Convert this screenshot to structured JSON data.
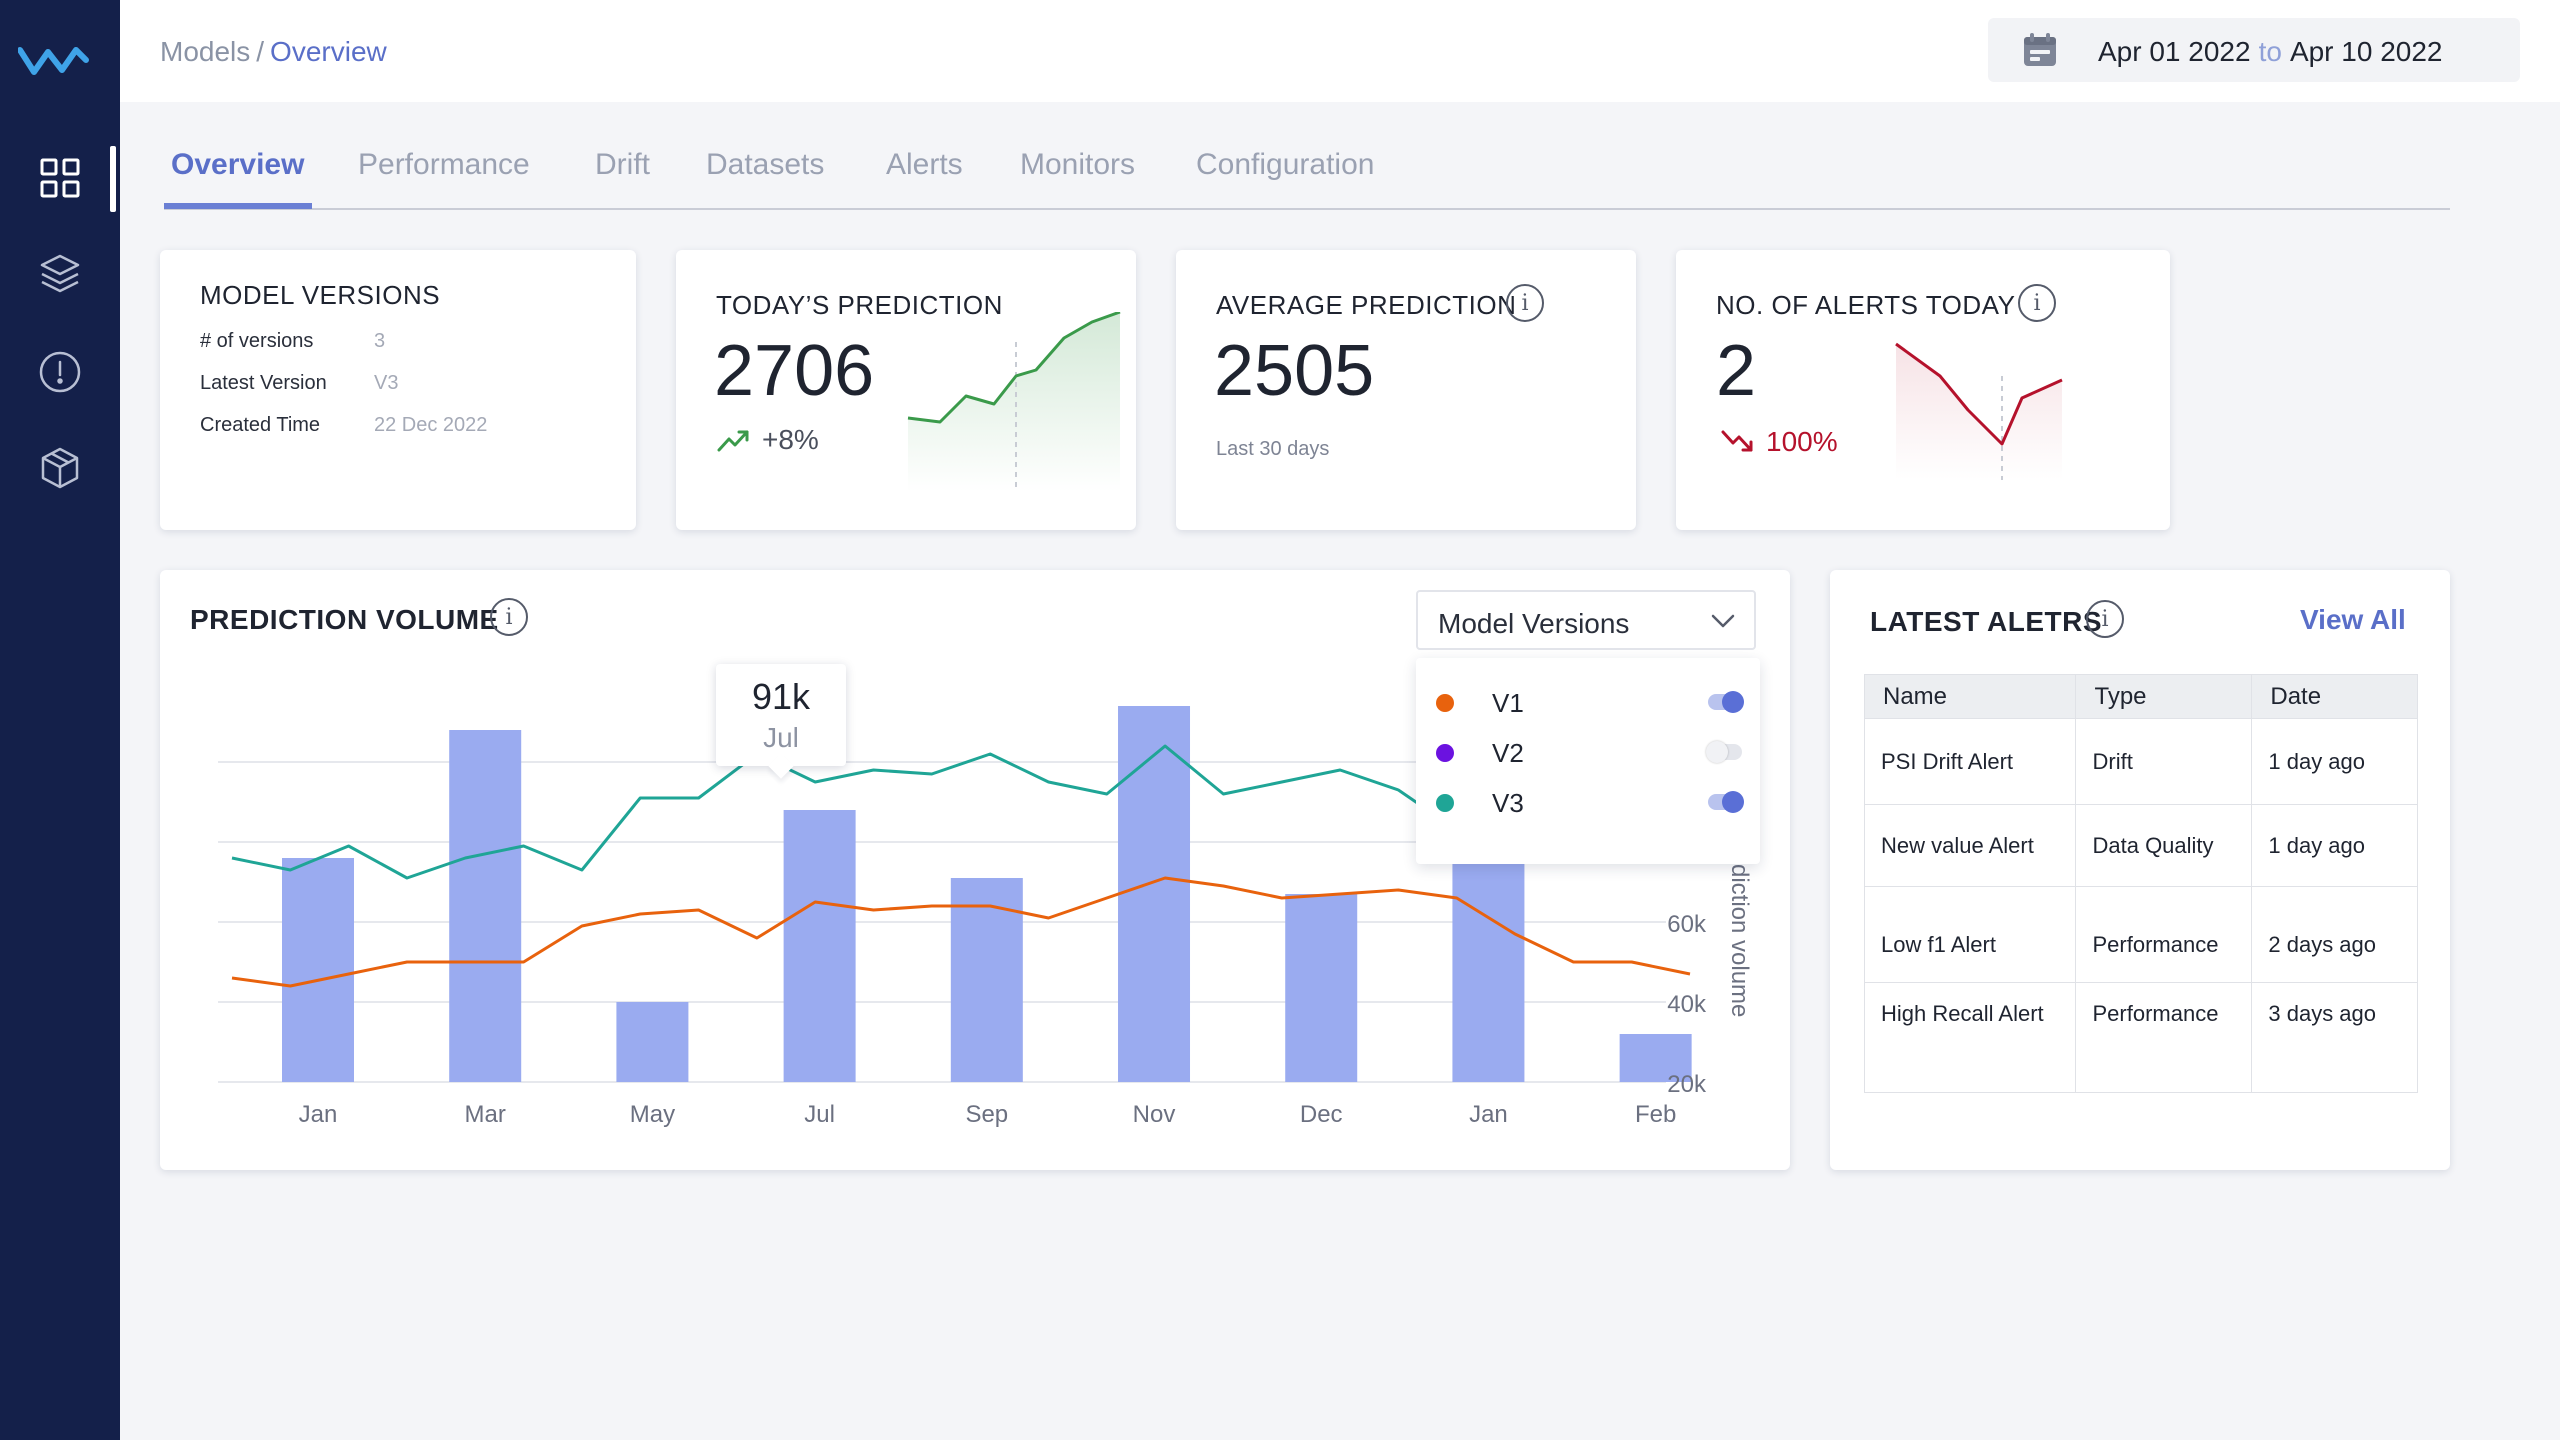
{
  "breadcrumb": {
    "parent": "Models",
    "separator": "/",
    "current": "Overview"
  },
  "date_range": {
    "from": "Apr 01 2022",
    "to_word": "to",
    "to": "Apr 10 2022"
  },
  "sidebar": {
    "items": [
      {
        "icon": "grid-icon",
        "active": true
      },
      {
        "icon": "layers-icon",
        "active": false
      },
      {
        "icon": "alert-circle-icon",
        "active": false
      },
      {
        "icon": "box-icon",
        "active": false
      }
    ]
  },
  "tabs": [
    "Overview",
    "Performance",
    "Drift",
    "Datasets",
    "Alerts",
    "Monitors",
    "Configuration"
  ],
  "model_versions": {
    "title": "MODEL VERSIONS",
    "rows": [
      {
        "label": "# of versions",
        "value": "3"
      },
      {
        "label": "Latest Version",
        "value": "V3"
      },
      {
        "label": "Created Time",
        "value": "22 Dec 2022"
      }
    ]
  },
  "todays_prediction": {
    "title": "TODAY’S PREDICTION",
    "value": "2706",
    "delta": "+8%",
    "trend": "up",
    "color": "#3a9a4a"
  },
  "average_prediction": {
    "title": "AVERAGE PREDICTION",
    "value": "2505",
    "subtitle": "Last 30 days"
  },
  "alerts_today": {
    "title": "NO. OF ALERTS TODAY",
    "value": "2",
    "delta": "100%",
    "trend": "down",
    "color": "#b5122c"
  },
  "prediction_volume": {
    "title": "PREDICTION VOLUME",
    "dropdown_label": "Model Versions",
    "legend": [
      {
        "name": "V1",
        "color": "#e8620d",
        "enabled": true
      },
      {
        "name": "V2",
        "color": "#6b12e0",
        "enabled": false
      },
      {
        "name": "V3",
        "color": "#1fa596",
        "enabled": true
      }
    ],
    "tooltip": {
      "value": "91k",
      "label": "Jul"
    }
  },
  "chart_data": {
    "type": "bar",
    "categories": [
      "Jan",
      "Mar",
      "May",
      "Jul",
      "Sep",
      "Nov",
      "Dec",
      "Jan",
      "Feb"
    ],
    "values": [
      76,
      108,
      40,
      88,
      71,
      114,
      67,
      92,
      32
    ],
    "ylabel": "rediction volume",
    "y_ticks": [
      "20k",
      "40k",
      "60k"
    ],
    "ylim": [
      20,
      120
    ],
    "bar_color": "#9aabf0",
    "grid": true,
    "lines": [
      {
        "name": "V1",
        "color": "#e8620d",
        "values": [
          46,
          44,
          47,
          50,
          50,
          50,
          59,
          62,
          63,
          56,
          65,
          63,
          64,
          64,
          61,
          66,
          71,
          69,
          66,
          67,
          68,
          66,
          57,
          50,
          50,
          47
        ]
      },
      {
        "name": "V3",
        "color": "#1fa596",
        "values": [
          76,
          73,
          79,
          71,
          76,
          79,
          73,
          91,
          91,
          102,
          95,
          98,
          97,
          102,
          95,
          92,
          104,
          92,
          95,
          98,
          93,
          83,
          82,
          78,
          78,
          76
        ]
      }
    ]
  },
  "latest_alerts": {
    "title": "LATEST ALETRS",
    "view_all": "View All",
    "columns": [
      "Name",
      "Type",
      "Date"
    ],
    "rows": [
      {
        "name": "PSI Drift Alert",
        "type": "Drift",
        "date": "1 day ago"
      },
      {
        "name": "New value Alert",
        "type": "Data Quality",
        "date": "1 day ago"
      },
      {
        "name": "Low f1 Alert",
        "type": "Performance",
        "date": "2 days ago"
      },
      {
        "name": "High Recall Alert",
        "type": "Performance",
        "date": "3 days ago"
      }
    ]
  }
}
